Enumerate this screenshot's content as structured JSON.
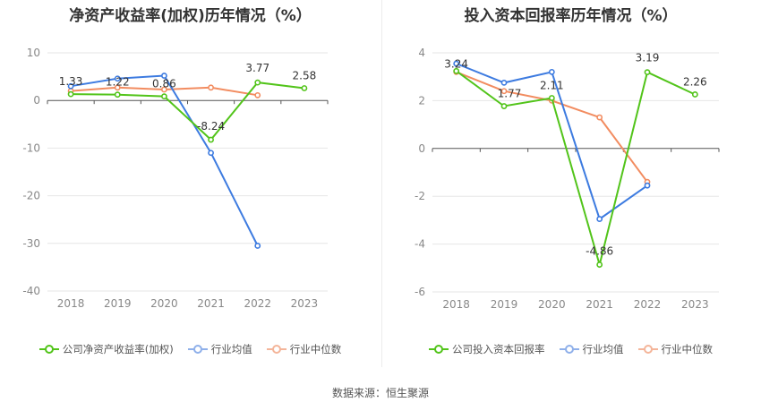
{
  "footer": "数据来源：恒生聚源",
  "chart_data": [
    {
      "type": "line",
      "title": "净资产收益率(加权)历年情况（%）",
      "categories": [
        "2018",
        "2019",
        "2020",
        "2021",
        "2022",
        "2023"
      ],
      "ylim": [
        -40,
        10
      ],
      "yticks": [
        10,
        0,
        -10,
        -20,
        -30,
        -40
      ],
      "grid": true,
      "legend_position": "bottom",
      "series": [
        {
          "name": "公司净资产收益率(加权)",
          "color": "#52c41a",
          "values": [
            1.33,
            1.22,
            0.86,
            -8.24,
            3.77,
            2.58
          ],
          "labels": [
            "1.33",
            "1.22",
            "0.86",
            "-8.24",
            "3.77",
            "2.58"
          ]
        },
        {
          "name": "行业均值",
          "color": "#3d7be0",
          "values": [
            3.0,
            4.6,
            5.2,
            -11.0,
            -30.5,
            null
          ]
        },
        {
          "name": "行业中位数",
          "color": "#f28c60",
          "values": [
            2.0,
            2.7,
            2.3,
            2.7,
            1.1,
            null
          ]
        }
      ]
    },
    {
      "type": "line",
      "title": "投入资本回报率历年情况（%）",
      "categories": [
        "2018",
        "2019",
        "2020",
        "2021",
        "2022",
        "2023"
      ],
      "ylim": [
        -6,
        4
      ],
      "yticks": [
        4,
        2,
        0,
        -2,
        -4,
        -6
      ],
      "grid": true,
      "legend_position": "bottom",
      "series": [
        {
          "name": "公司投入资本回报率",
          "color": "#52c41a",
          "values": [
            3.24,
            1.77,
            2.11,
            -4.86,
            3.19,
            2.26
          ],
          "labels": [
            "3.24",
            "1.77",
            "2.11",
            "-4.86",
            "3.19",
            "2.26"
          ]
        },
        {
          "name": "行业均值",
          "color": "#3d7be0",
          "values": [
            3.55,
            2.75,
            3.2,
            -2.95,
            -1.55,
            null
          ]
        },
        {
          "name": "行业中位数",
          "color": "#f28c60",
          "values": [
            3.2,
            2.4,
            2.0,
            1.3,
            -1.4,
            null
          ]
        }
      ]
    }
  ]
}
